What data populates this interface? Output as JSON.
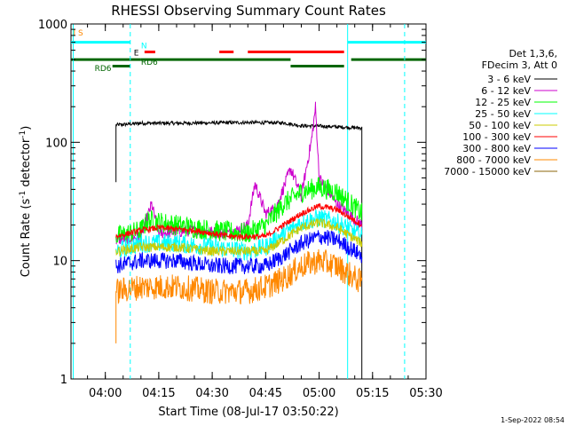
{
  "chart_data": {
    "type": "line",
    "title": "RHESSI Observing Summary Count Rates",
    "xlabel": "Start Time (08-Jul-17 03:50:22)",
    "ylabel_parts": [
      "Count Rate (s",
      "-1",
      " detector",
      "-1",
      ")"
    ],
    "yscale": "log",
    "ylim": [
      1,
      1000
    ],
    "xlim": [
      "03:50:22",
      "05:30:00"
    ],
    "yticks": [
      {
        "value": 1,
        "label": "1"
      },
      {
        "value": 10,
        "label": "10"
      },
      {
        "value": 100,
        "label": "100"
      },
      {
        "value": 1000,
        "label": "1000"
      }
    ],
    "xticks": [
      {
        "value": "04:00",
        "label": "04:00"
      },
      {
        "value": "04:15",
        "label": "04:15"
      },
      {
        "value": "04:30",
        "label": "04:30"
      },
      {
        "value": "04:45",
        "label": "04:45"
      },
      {
        "value": "05:00",
        "label": "05:00"
      },
      {
        "value": "05:15",
        "label": "05:15"
      },
      {
        "value": "05:30",
        "label": "05:30"
      }
    ],
    "legend_header": [
      "Det 1,3,6,",
      "FDecim 3, Att 0"
    ],
    "series": [
      {
        "name": "3 - 6 keV",
        "color": "#000000",
        "points": [
          [
            "04:03",
            46
          ],
          [
            "04:03",
            140
          ],
          [
            "04:10",
            145
          ],
          [
            "04:20",
            145
          ],
          [
            "04:30",
            146
          ],
          [
            "04:40",
            147
          ],
          [
            "04:50",
            146
          ],
          [
            "04:55",
            138
          ],
          [
            "05:00",
            137
          ],
          [
            "05:05",
            135
          ],
          [
            "05:12",
            132
          ],
          [
            "05:12",
            1
          ]
        ]
      },
      {
        "name": "6 - 12 keV",
        "color": "#cc00cc",
        "points": [
          [
            "04:03",
            15
          ],
          [
            "04:10",
            16
          ],
          [
            "04:13",
            30
          ],
          [
            "04:15",
            17
          ],
          [
            "04:25",
            18
          ],
          [
            "04:35",
            17
          ],
          [
            "04:40",
            20
          ],
          [
            "04:42",
            45
          ],
          [
            "04:45",
            25
          ],
          [
            "04:48",
            28
          ],
          [
            "04:52",
            60
          ],
          [
            "04:55",
            35
          ],
          [
            "04:58",
            110
          ],
          [
            "04:59",
            200
          ],
          [
            "05:00",
            50
          ],
          [
            "05:05",
            30
          ],
          [
            "05:12",
            20
          ]
        ]
      },
      {
        "name": "12 - 25 keV",
        "color": "#00ff00",
        "points": [
          [
            "04:03",
            16
          ],
          [
            "04:10",
            18
          ],
          [
            "04:12",
            22
          ],
          [
            "04:20",
            20
          ],
          [
            "04:30",
            18
          ],
          [
            "04:40",
            17
          ],
          [
            "04:45",
            20
          ],
          [
            "04:50",
            30
          ],
          [
            "04:55",
            38
          ],
          [
            "05:00",
            42
          ],
          [
            "05:05",
            38
          ],
          [
            "05:12",
            25
          ]
        ]
      },
      {
        "name": "25 - 50 keV",
        "color": "#00ffff",
        "points": [
          [
            "04:03",
            12
          ],
          [
            "04:10",
            14
          ],
          [
            "04:20",
            14
          ],
          [
            "04:30",
            13
          ],
          [
            "04:40",
            12
          ],
          [
            "04:45",
            13
          ],
          [
            "04:50",
            17
          ],
          [
            "04:55",
            21
          ],
          [
            "05:00",
            23
          ],
          [
            "05:05",
            21
          ],
          [
            "05:12",
            16
          ]
        ]
      },
      {
        "name": "50 - 100 keV",
        "color": "#cccc00",
        "points": [
          [
            "04:03",
            12
          ],
          [
            "04:10",
            13
          ],
          [
            "04:20",
            13
          ],
          [
            "04:30",
            12
          ],
          [
            "04:40",
            12
          ],
          [
            "04:45",
            12
          ],
          [
            "04:50",
            15
          ],
          [
            "04:55",
            19
          ],
          [
            "05:00",
            21
          ],
          [
            "05:05",
            19
          ],
          [
            "05:12",
            14
          ]
        ]
      },
      {
        "name": "100 - 300 keV",
        "color": "#ff0000",
        "points": [
          [
            "04:03",
            16
          ],
          [
            "04:10",
            18
          ],
          [
            "04:15",
            19
          ],
          [
            "04:25",
            18
          ],
          [
            "04:35",
            16
          ],
          [
            "04:45",
            16
          ],
          [
            "04:50",
            20
          ],
          [
            "04:55",
            25
          ],
          [
            "05:00",
            29
          ],
          [
            "05:05",
            27
          ],
          [
            "05:12",
            20
          ]
        ]
      },
      {
        "name": "300 - 800 keV",
        "color": "#0000ff",
        "points": [
          [
            "04:03",
            9
          ],
          [
            "04:10",
            10
          ],
          [
            "04:20",
            10
          ],
          [
            "04:30",
            9
          ],
          [
            "04:40",
            9
          ],
          [
            "04:45",
            9
          ],
          [
            "04:50",
            11
          ],
          [
            "04:55",
            14
          ],
          [
            "05:00",
            16
          ],
          [
            "05:05",
            15
          ],
          [
            "05:12",
            11
          ]
        ]
      },
      {
        "name": "800 - 7000 keV",
        "color": "#ff8800",
        "points": [
          [
            "04:03",
            2
          ],
          [
            "04:03",
            5.5
          ],
          [
            "04:10",
            6
          ],
          [
            "04:20",
            6
          ],
          [
            "04:30",
            5.5
          ],
          [
            "04:40",
            5.5
          ],
          [
            "04:45",
            6
          ],
          [
            "04:50",
            7
          ],
          [
            "04:55",
            9
          ],
          [
            "05:00",
            10
          ],
          [
            "05:05",
            9
          ],
          [
            "05:12",
            6.5
          ]
        ]
      },
      {
        "name": "7000 - 15000 keV",
        "color": "#8b6508",
        "points": []
      }
    ],
    "flags": [
      {
        "label": "",
        "color": "#00ffff",
        "segments": [
          [
            "03:50:22",
            "04:07"
          ],
          [
            "05:08",
            "05:30"
          ]
        ],
        "level": 700
      },
      {
        "label": "",
        "color": "#ff0000",
        "segments": [
          [
            "04:11",
            "04:14"
          ],
          [
            "04:32",
            "04:36"
          ],
          [
            "04:40",
            "05:07"
          ]
        ],
        "level": 580
      },
      {
        "label": "",
        "color": "#006600",
        "segments": [
          [
            "03:50:22",
            "04:10"
          ],
          [
            "04:10",
            "04:52"
          ],
          [
            "05:09",
            "05:30"
          ]
        ],
        "level": 500
      },
      {
        "label": "",
        "color": "#006600",
        "segments": [
          [
            "04:02",
            "04:07"
          ],
          [
            "04:52",
            "05:07"
          ]
        ],
        "level": 440
      }
    ],
    "flag_labels": [
      {
        "label": "I S",
        "color": "#ff8800",
        "time": "03:51",
        "level": 800
      },
      {
        "label": "N",
        "color": "#00ffff",
        "time": "04:10",
        "level": 620
      },
      {
        "label": "E",
        "color": "#000000",
        "time": "04:08",
        "level": 540
      },
      {
        "label": "RD6",
        "color": "#006600",
        "time": "04:10",
        "level": 450
      },
      {
        "label": "RD6",
        "color": "#006600",
        "time": "03:57",
        "level": 400
      }
    ],
    "vlines": [
      {
        "time": "03:51",
        "color": "#00ffff",
        "style": "solid"
      },
      {
        "time": "04:07",
        "color": "#00ffff",
        "style": "dashed"
      },
      {
        "time": "05:08",
        "color": "#00ffff",
        "style": "solid"
      },
      {
        "time": "05:24",
        "color": "#00ffff",
        "style": "dashed"
      }
    ],
    "grid": false,
    "legend_position": "right"
  },
  "timestamp": "1-Sep-2022 08:54"
}
